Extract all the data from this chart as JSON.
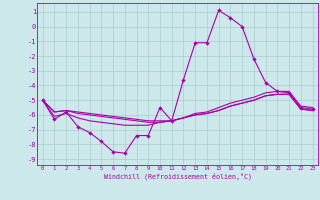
{
  "xlabel": "Windchill (Refroidissement éolien,°C)",
  "bg_color": "#cce8ea",
  "grid_color": "#aacccc",
  "line_color": "#aa00aa",
  "xlim": [
    -0.5,
    23.5
  ],
  "ylim": [
    -9.4,
    1.6
  ],
  "xticks": [
    0,
    1,
    2,
    3,
    4,
    5,
    6,
    7,
    8,
    9,
    10,
    11,
    12,
    13,
    14,
    15,
    16,
    17,
    18,
    19,
    20,
    21,
    22,
    23
  ],
  "yticks": [
    1,
    0,
    -1,
    -2,
    -3,
    -4,
    -5,
    -6,
    -7,
    -8,
    -9
  ],
  "hours": [
    0,
    1,
    2,
    3,
    4,
    5,
    6,
    7,
    8,
    9,
    10,
    11,
    12,
    13,
    14,
    15,
    16,
    17,
    18,
    19,
    20,
    21,
    22,
    23
  ],
  "line1": [
    -5.0,
    -6.3,
    -5.8,
    -6.8,
    -7.2,
    -7.8,
    -8.5,
    -8.6,
    -7.4,
    -7.4,
    -5.5,
    -6.4,
    -3.6,
    -1.1,
    -1.1,
    1.1,
    0.6,
    0.0,
    -2.2,
    -3.8,
    -4.4,
    -4.5,
    -5.5,
    -5.6
  ],
  "line2": [
    -5.0,
    -5.8,
    -5.7,
    -5.8,
    -5.9,
    -6.0,
    -6.1,
    -6.2,
    -6.3,
    -6.4,
    -6.4,
    -6.4,
    -6.2,
    -5.9,
    -5.8,
    -5.5,
    -5.2,
    -5.0,
    -4.8,
    -4.5,
    -4.4,
    -4.4,
    -5.4,
    -5.5
  ],
  "line3": [
    -5.0,
    -5.8,
    -5.7,
    -5.9,
    -6.0,
    -6.1,
    -6.2,
    -6.3,
    -6.4,
    -6.5,
    -6.5,
    -6.4,
    -6.2,
    -6.0,
    -5.9,
    -5.7,
    -5.4,
    -5.2,
    -5.0,
    -4.7,
    -4.6,
    -4.6,
    -5.6,
    -5.7
  ],
  "line4": [
    -5.0,
    -6.1,
    -5.9,
    -6.2,
    -6.4,
    -6.5,
    -6.6,
    -6.7,
    -6.7,
    -6.7,
    -6.5,
    -6.4,
    -6.2,
    -6.0,
    -5.9,
    -5.7,
    -5.4,
    -5.2,
    -5.0,
    -4.7,
    -4.6,
    -4.6,
    -5.6,
    -5.7
  ]
}
